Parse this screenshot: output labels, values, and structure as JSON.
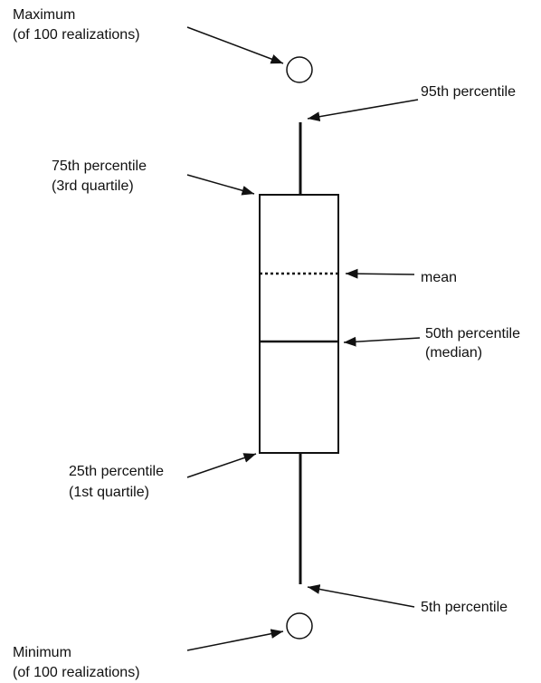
{
  "annotations": {
    "maximum": [
      "Maximum",
      "(of 100 realizations)"
    ],
    "p95": [
      "95th percentile"
    ],
    "p75": [
      "75th percentile",
      "(3rd quartile)"
    ],
    "mean": [
      "mean"
    ],
    "p50": [
      "50th percentile",
      "(median)"
    ],
    "p25": [
      "25th percentile",
      "(1st quartile)"
    ],
    "p5": [
      "5th percentile"
    ],
    "minimum": [
      "Minimum",
      "(of 100 realizations)"
    ]
  }
}
